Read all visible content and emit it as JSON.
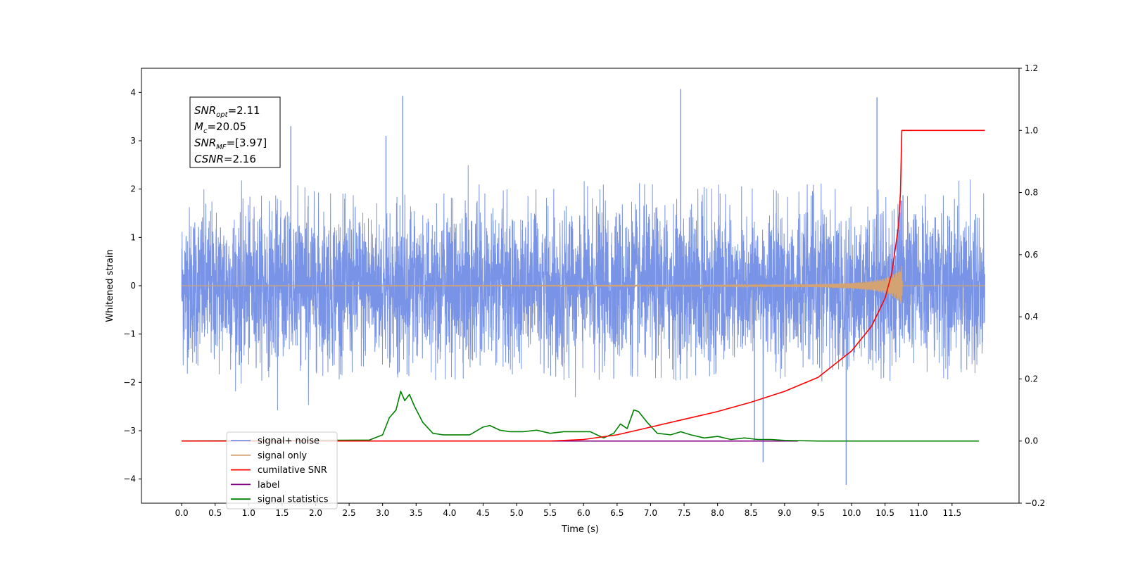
{
  "chart_data": {
    "type": "line",
    "xlabel": "Time (s)",
    "ylabel": "Whitened strain",
    "xlim": [
      -0.6,
      12.5
    ],
    "ylim": [
      -4.5,
      4.5
    ],
    "y2lim": [
      -0.2,
      1.2
    ],
    "x_ticks": [
      0.0,
      0.5,
      1.0,
      1.5,
      2.0,
      2.5,
      3.0,
      3.5,
      4.0,
      4.5,
      5.0,
      5.5,
      6.0,
      6.5,
      7.0,
      7.5,
      8.0,
      8.5,
      9.0,
      9.5,
      10.0,
      10.5,
      11.0,
      11.5
    ],
    "y_ticks": [
      -4,
      -3,
      -2,
      -1,
      0,
      1,
      2,
      3,
      4
    ],
    "y2_ticks": [
      -0.2,
      0.0,
      0.2,
      0.4,
      0.6,
      0.8,
      1.0,
      1.2
    ],
    "annotations": [
      {
        "base": "SNR",
        "sub": "opt",
        "value": "=2.11"
      },
      {
        "base": "M",
        "sub": "c",
        "value": "=20.05"
      },
      {
        "base": "SNR",
        "sub": "MF",
        "value": "=[3.97]"
      },
      {
        "base": "CSNR",
        "sub": "",
        "value": "=2.16"
      }
    ],
    "legend_position": "lower-left",
    "series": [
      {
        "name": "signal+ noise",
        "color": "#7993e6",
        "axis": "left",
        "x_range": [
          0.0,
          11.99
        ],
        "typical_amplitude": [
          -2.0,
          2.2
        ],
        "peaks": [
          {
            "x": 3.3,
            "y": 3.93
          },
          {
            "x": 7.45,
            "y": 4.07
          },
          {
            "x": 10.38,
            "y": 3.9
          },
          {
            "x": 9.92,
            "y": -4.12
          },
          {
            "x": 8.68,
            "y": -3.65
          },
          {
            "x": 3.05,
            "y": 3.1
          },
          {
            "x": 1.63,
            "y": 3.3
          },
          {
            "x": 8.55,
            "y": -3.2
          }
        ]
      },
      {
        "name": "signal only",
        "color": "#d4a373",
        "axis": "left",
        "x": [
          0.0,
          8.0,
          9.5,
          10.0,
          10.3,
          10.5,
          10.6,
          10.7,
          10.75,
          10.76,
          11.99
        ],
        "envelope": [
          0.0,
          0.01,
          0.03,
          0.06,
          0.1,
          0.16,
          0.22,
          0.32,
          0.42,
          0.0,
          0.0
        ]
      },
      {
        "name": "cumilative SNR",
        "color": "#ff0000",
        "axis": "right",
        "x": [
          0.0,
          5.5,
          6.0,
          6.5,
          7.0,
          7.5,
          8.0,
          8.5,
          9.0,
          9.5,
          10.0,
          10.3,
          10.5,
          10.6,
          10.7,
          10.73,
          10.75,
          11.99
        ],
        "values": [
          0.0,
          0.0,
          0.005,
          0.02,
          0.045,
          0.07,
          0.095,
          0.125,
          0.16,
          0.205,
          0.29,
          0.37,
          0.46,
          0.54,
          0.69,
          0.8,
          1.0,
          1.0
        ]
      },
      {
        "name": "label",
        "color": "#800080",
        "axis": "right",
        "x": [
          0.0,
          9.2
        ],
        "values": [
          0.0,
          0.0
        ]
      },
      {
        "name": "signal statistics",
        "color": "#008000",
        "axis": "right",
        "x": [
          0.0,
          2.8,
          3.0,
          3.1,
          3.2,
          3.27,
          3.33,
          3.4,
          3.48,
          3.6,
          3.75,
          3.9,
          4.1,
          4.3,
          4.5,
          4.6,
          4.75,
          4.9,
          5.1,
          5.3,
          5.5,
          5.7,
          5.9,
          6.1,
          6.3,
          6.45,
          6.55,
          6.65,
          6.75,
          6.82,
          6.95,
          7.1,
          7.3,
          7.45,
          7.6,
          7.8,
          8.0,
          8.2,
          8.4,
          8.6,
          8.8,
          9.0,
          9.5,
          11.9
        ],
        "values": [
          0.0,
          0.003,
          0.02,
          0.075,
          0.1,
          0.16,
          0.13,
          0.15,
          0.11,
          0.06,
          0.025,
          0.02,
          0.02,
          0.02,
          0.045,
          0.05,
          0.035,
          0.03,
          0.03,
          0.035,
          0.025,
          0.03,
          0.03,
          0.03,
          0.01,
          0.025,
          0.055,
          0.04,
          0.1,
          0.095,
          0.06,
          0.025,
          0.02,
          0.03,
          0.02,
          0.01,
          0.015,
          0.005,
          0.01,
          0.005,
          0.005,
          0.002,
          0.0,
          0.0
        ]
      }
    ]
  }
}
